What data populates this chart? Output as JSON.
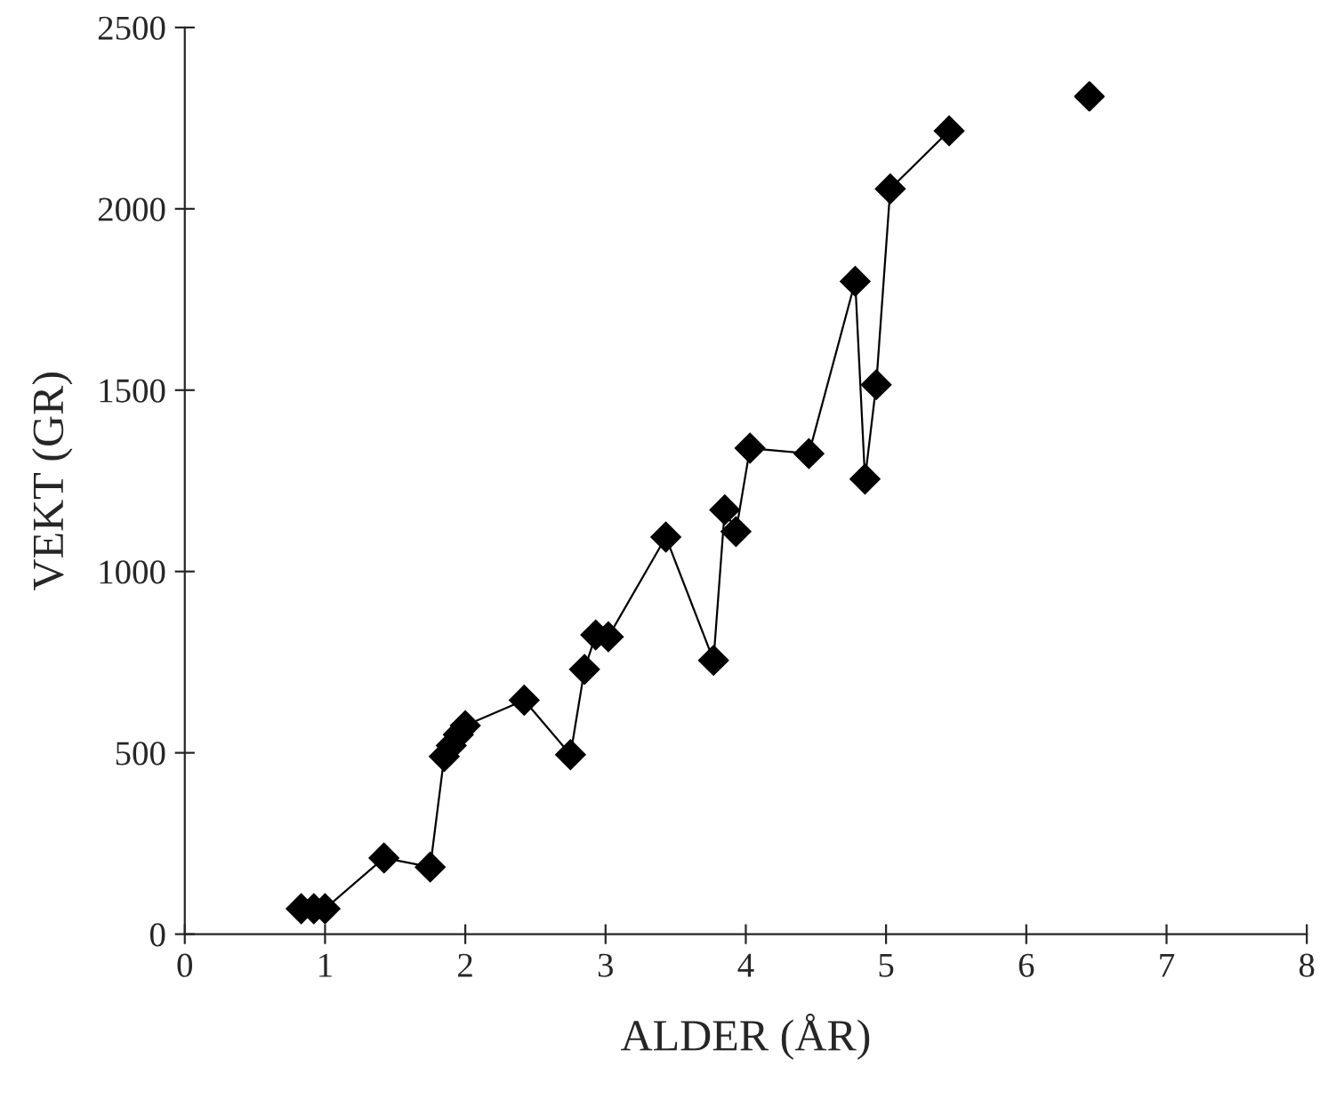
{
  "chart_data": {
    "type": "line",
    "xlabel": "ALDER (ÅR)",
    "ylabel": "VEKT (GR)",
    "series": [
      {
        "color": "#000000",
        "x": [
          0.83,
          0.92,
          1.0,
          1.42,
          1.75,
          1.85,
          1.9,
          1.95,
          2.0,
          2.42,
          2.75,
          2.85,
          2.93,
          3.02,
          3.43,
          3.77,
          3.85,
          3.93,
          4.03,
          4.45,
          4.78,
          4.85,
          4.93,
          5.03,
          5.45
        ],
        "values": [
          70,
          70,
          70,
          210,
          185,
          490,
          520,
          550,
          575,
          645,
          495,
          730,
          825,
          820,
          1095,
          755,
          1170,
          1110,
          1340,
          1325,
          1800,
          1255,
          1515,
          2055,
          2215
        ]
      },
      {
        "type": "scatter",
        "color": "#000000",
        "x": [
          6.45
        ],
        "values": [
          2310
        ]
      }
    ],
    "xlim": [
      0,
      8
    ],
    "xticks": [
      0,
      1,
      2,
      3,
      4,
      5,
      6,
      7,
      8
    ],
    "ylim": [
      0,
      2500
    ],
    "yticks": [
      0,
      500,
      1000,
      1500,
      2000,
      2500
    ],
    "marker": "diamond",
    "line_style": "solid",
    "grid": false,
    "legend": false
  }
}
